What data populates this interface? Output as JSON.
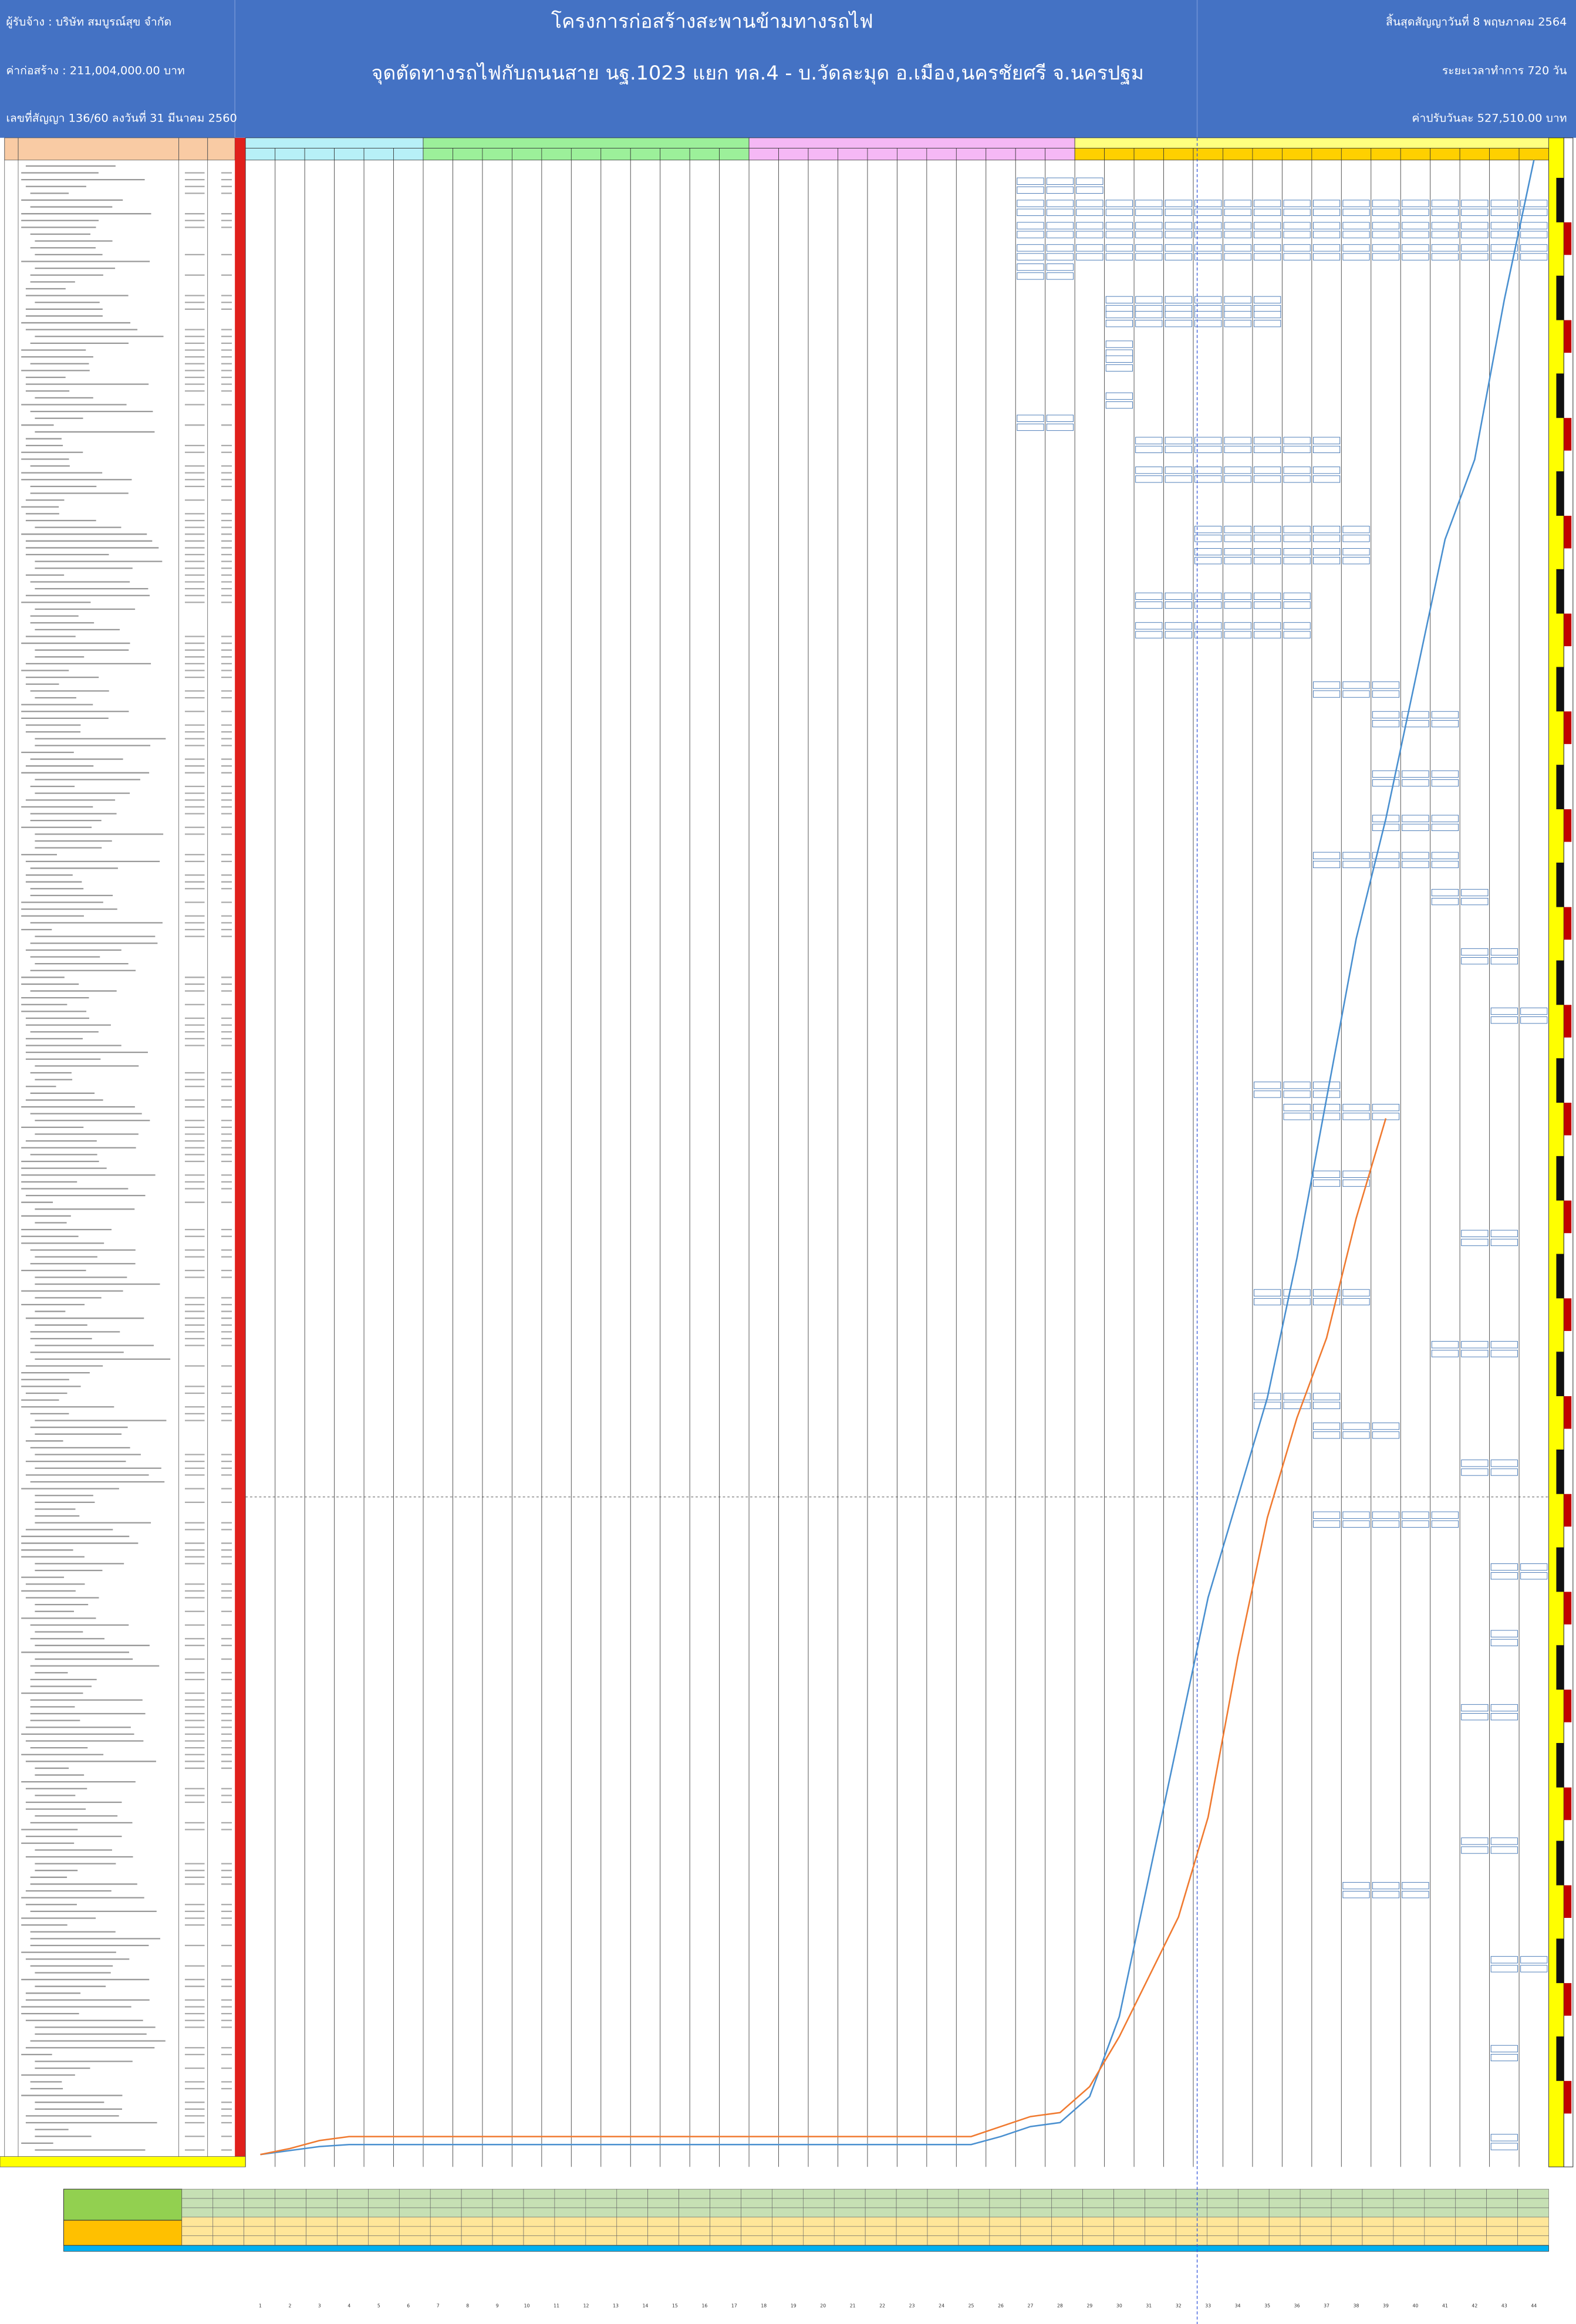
{
  "header": {
    "contractor": "ผู้รับจ้าง : บริษัท  สมบูรณ์สุข  จำกัด",
    "cost": "ค่าก่อสร้าง : 211,004,000.00  บาท",
    "contract_no": "เลขที่สัญญา  136/60  ลงวันที่ 31 มีนาคม 2560",
    "title": "โครงการก่อสร้างสะพานข้ามทางรถไฟ",
    "subtitle": "จุดตัดทางรถไฟกับถนนสาย นฐ.1023 แยก ทล.4 - บ.วัดละมุด อ.เมือง,นครชัยศรี จ.นครปฐม",
    "end_date": "สิ้นสุดสัญญาวันที่  8 พฤษภาคม  2564",
    "duration": "ระยะเวลาทำการ 720 วัน",
    "penalty": "ค่าปรับวันละ 527,510.00  บาท"
  },
  "chart_data": {
    "type": "line",
    "x": [
      1,
      2,
      3,
      4,
      5,
      6,
      7,
      8,
      9,
      10,
      11,
      12,
      13,
      14,
      15,
      16,
      17,
      18,
      19,
      20,
      21,
      22,
      23,
      24,
      25,
      26,
      27,
      28,
      29,
      30,
      31,
      32,
      33,
      34,
      35,
      36,
      37,
      38,
      39,
      40,
      41,
      42,
      43,
      44
    ],
    "xlim": [
      0.5,
      44.5
    ],
    "ylim": [
      0,
      100
    ],
    "series": [
      {
        "color": "#4a90d0",
        "values": [
          0.1,
          0.3,
          0.5,
          0.6,
          0.6,
          0.6,
          0.6,
          0.6,
          0.6,
          0.6,
          0.6,
          0.6,
          0.6,
          0.6,
          0.6,
          0.6,
          0.6,
          0.6,
          0.6,
          0.6,
          0.6,
          0.6,
          0.6,
          0.6,
          0.6,
          1.0,
          1.5,
          1.7,
          3,
          7,
          14,
          21,
          28,
          33,
          38,
          45,
          53,
          61,
          67,
          74,
          81,
          85,
          93,
          100
        ]
      },
      {
        "color": "#f07a30",
        "values": [
          0.1,
          0.4,
          0.8,
          1.0,
          1.0,
          1.0,
          1.0,
          1.0,
          1.0,
          1.0,
          1.0,
          1.0,
          1.0,
          1.0,
          1.0,
          1.0,
          1.0,
          1.0,
          1.0,
          1.0,
          1.0,
          1.0,
          1.0,
          1.0,
          1.0,
          1.5,
          2,
          2.2,
          3.5,
          6,
          9,
          12,
          17,
          25,
          32,
          37,
          41,
          47,
          52,
          null,
          null,
          null,
          null,
          null
        ]
      }
    ]
  }
}
